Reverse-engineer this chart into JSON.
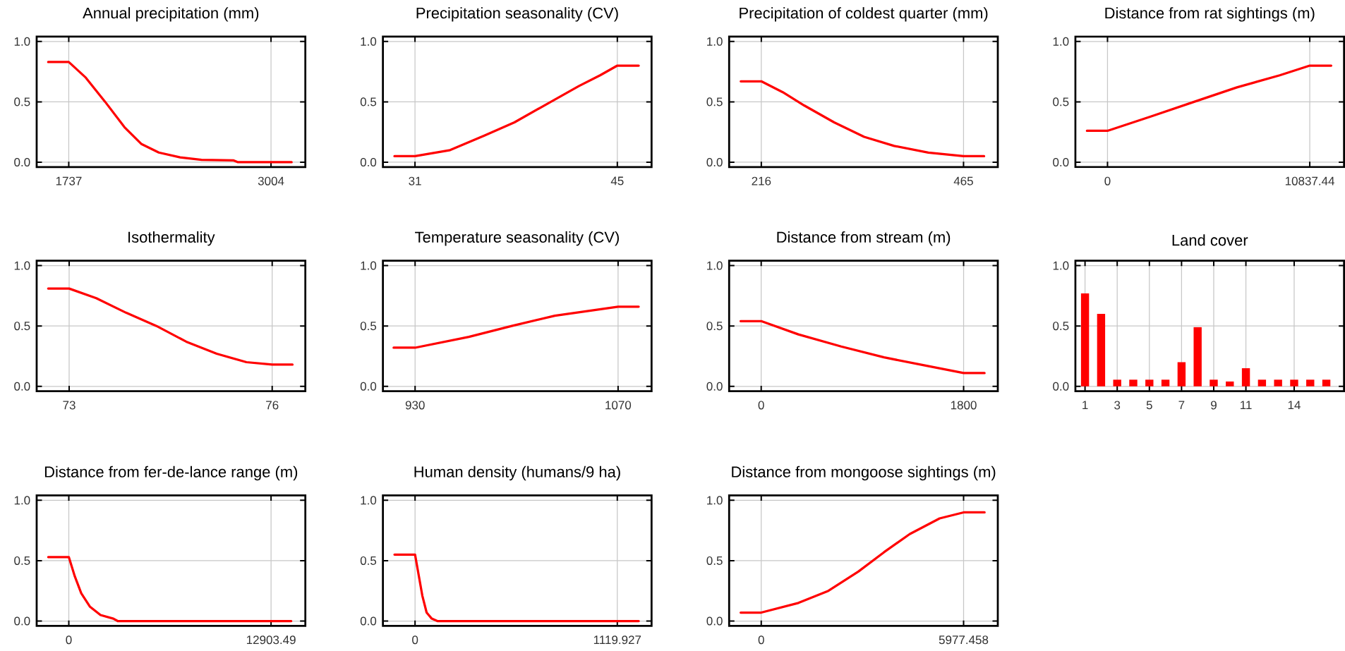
{
  "chart_data": [
    {
      "type": "line",
      "title": "Annual precipitation (mm)",
      "color": "#ff0000",
      "grid": true,
      "x": [
        1608,
        1737,
        1844,
        1965,
        2086,
        2193,
        2301,
        2435,
        2569,
        2770,
        2797,
        3133
      ],
      "values": [
        0.83,
        0.83,
        0.7,
        0.5,
        0.29,
        0.15,
        0.08,
        0.04,
        0.02,
        0.015,
        0.0,
        0.0
      ],
      "xlim": [
        1536,
        3219
      ],
      "xticks": [
        1737,
        3004
      ],
      "ylim": [
        -0.04,
        1.04
      ],
      "yticks": [
        {
          "value": 0,
          "label": "0.0"
        },
        {
          "value": 0.5,
          "label": "0.5"
        },
        {
          "value": 1,
          "label": "1.0"
        }
      ]
    },
    {
      "type": "line",
      "title": "Precipitation seasonality (CV)",
      "color": "#ff0000",
      "grid": true,
      "x": [
        29.58,
        31,
        33.43,
        35.8,
        37.88,
        40.25,
        42.33,
        43.81,
        45,
        46.48
      ],
      "values": [
        0.05,
        0.05,
        0.1,
        0.22,
        0.33,
        0.49,
        0.63,
        0.72,
        0.8,
        0.8
      ],
      "xlim": [
        28.78,
        47.37
      ],
      "xticks": [
        31,
        45
      ],
      "ylim": [
        -0.04,
        1.04
      ],
      "yticks": [
        {
          "value": 0,
          "label": "0.0"
        },
        {
          "value": 0.5,
          "label": "0.5"
        },
        {
          "value": 1,
          "label": "1.0"
        }
      ]
    },
    {
      "type": "line",
      "title": "Precipitation of coldest quarter (mm)",
      "color": "#ff0000",
      "grid": true,
      "x": [
        190.7,
        216,
        242.4,
        268.8,
        305.7,
        342.6,
        379.5,
        421.7,
        465,
        490.3
      ],
      "values": [
        0.67,
        0.67,
        0.58,
        0.47,
        0.33,
        0.21,
        0.135,
        0.08,
        0.05,
        0.05
      ],
      "xlim": [
        176.4,
        507.2
      ],
      "xticks": [
        216,
        465
      ],
      "ylim": [
        -0.04,
        1.04
      ],
      "yticks": [
        {
          "value": 0,
          "label": "0.0"
        },
        {
          "value": 0.5,
          "label": "0.5"
        },
        {
          "value": 1,
          "label": "1.0"
        }
      ]
    },
    {
      "type": "line",
      "title": "Distance from rat sightings (m)",
      "color": "#ff0000",
      "grid": true,
      "x": [
        -1102,
        0,
        2342,
        4638,
        6934,
        9230,
        10837.44,
        11985
      ],
      "values": [
        0.26,
        0.26,
        0.38,
        0.5,
        0.62,
        0.72,
        0.8,
        0.8
      ],
      "xlim": [
        -1722,
        12674
      ],
      "xticks": [
        0,
        10837.44
      ],
      "ylim": [
        -0.04,
        1.04
      ],
      "yticks": [
        {
          "value": 0,
          "label": "0.0"
        },
        {
          "value": 0.5,
          "label": "0.5"
        },
        {
          "value": 1,
          "label": "1.0"
        }
      ]
    },
    {
      "type": "line",
      "title": "Isothermality",
      "color": "#ff0000",
      "grid": true,
      "x": [
        72.69,
        73,
        73.4,
        73.84,
        74.29,
        74.73,
        75.18,
        75.62,
        76,
        76.3
      ],
      "values": [
        0.81,
        0.81,
        0.73,
        0.61,
        0.5,
        0.37,
        0.27,
        0.2,
        0.18,
        0.18
      ],
      "xlim": [
        72.52,
        76.49
      ],
      "xticks": [
        73,
        76
      ],
      "ylim": [
        -0.04,
        1.04
      ],
      "yticks": [
        {
          "value": 0,
          "label": "0.0"
        },
        {
          "value": 0.5,
          "label": "0.5"
        },
        {
          "value": 1,
          "label": "1.0"
        }
      ]
    },
    {
      "type": "line",
      "title": "Temperature seasonality (CV)",
      "color": "#ff0000",
      "grid": true,
      "x": [
        915.2,
        930,
        967.1,
        996.7,
        1026.4,
        1070,
        1084.2
      ],
      "values": [
        0.32,
        0.32,
        0.41,
        0.5,
        0.585,
        0.66,
        0.66
      ],
      "xlim": [
        907.8,
        1093.1
      ],
      "xticks": [
        930,
        1070
      ],
      "ylim": [
        -0.04,
        1.04
      ],
      "yticks": [
        {
          "value": 0,
          "label": "0.0"
        },
        {
          "value": 0.5,
          "label": "0.5"
        },
        {
          "value": 1,
          "label": "1.0"
        }
      ]
    },
    {
      "type": "line",
      "title": "Distance from stream (m)",
      "color": "#ff0000",
      "grid": true,
      "x": [
        -183,
        0,
        331,
        711,
        1092,
        1472,
        1800,
        1986
      ],
      "values": [
        0.54,
        0.54,
        0.43,
        0.33,
        0.24,
        0.17,
        0.11,
        0.11
      ],
      "xlim": [
        -285,
        2104
      ],
      "xticks": [
        0,
        1800
      ],
      "ylim": [
        -0.04,
        1.04
      ],
      "yticks": [
        {
          "value": 0,
          "label": "0.0"
        },
        {
          "value": 0.5,
          "label": "0.5"
        },
        {
          "value": 1,
          "label": "1.0"
        }
      ]
    },
    {
      "type": "bar",
      "title": "Land cover",
      "color": "#ff0000",
      "grid": true,
      "x": [
        1,
        2,
        3,
        4,
        5,
        6,
        7,
        8,
        9,
        10,
        11,
        12,
        13,
        14,
        15,
        16
      ],
      "values": [
        0.77,
        0.6,
        0.055,
        0.055,
        0.055,
        0.055,
        0.2,
        0.49,
        0.055,
        0.04,
        0.15,
        0.055,
        0.055,
        0.055,
        0.055,
        0.055
      ],
      "xlim": [
        0.4,
        17.1
      ],
      "xticks": [
        1,
        3,
        5,
        7,
        9,
        11,
        14
      ],
      "ylim": [
        -0.04,
        1.04
      ],
      "yticks": [
        {
          "value": 0,
          "label": "0.0"
        },
        {
          "value": 0.5,
          "label": "0.5"
        },
        {
          "value": 1,
          "label": "1.0"
        }
      ]
    },
    {
      "type": "line",
      "title": "Distance from fer-de-lance range (m)",
      "color": "#ff0000",
      "grid": true,
      "x": [
        -1312,
        0,
        383,
        793,
        1340,
        2023,
        2843,
        3117,
        14190
      ],
      "values": [
        0.53,
        0.53,
        0.37,
        0.23,
        0.12,
        0.05,
        0.02,
        0.0,
        0.0
      ],
      "xlim": [
        -2050,
        15091
      ],
      "xticks": [
        0,
        12903.49
      ],
      "ylim": [
        -0.04,
        1.04
      ],
      "yticks": [
        {
          "value": 0,
          "label": "0.0"
        },
        {
          "value": 0.5,
          "label": "0.5"
        },
        {
          "value": 1,
          "label": "1.0"
        }
      ]
    },
    {
      "type": "line",
      "title": "Human density (humans/9 ha)",
      "color": "#ff0000",
      "grid": true,
      "x": [
        -113.9,
        0,
        21.4,
        40.3,
        64.1,
        92.5,
        123.4,
        1238.6
      ],
      "values": [
        0.55,
        0.55,
        0.37,
        0.21,
        0.07,
        0.02,
        0.0,
        0.0
      ],
      "xlim": [
        -178,
        1309.7
      ],
      "xticks": [
        0,
        1119.927
      ],
      "ylim": [
        -0.04,
        1.04
      ],
      "yticks": [
        {
          "value": 0,
          "label": "0.0"
        },
        {
          "value": 0.5,
          "label": "0.5"
        },
        {
          "value": 1,
          "label": "1.0"
        }
      ]
    },
    {
      "type": "line",
      "title": "Distance from mongoose sightings (m)",
      "color": "#ff0000",
      "grid": true,
      "x": [
        -607,
        0,
        1099,
        1984,
        2869,
        3627,
        4385,
        5270,
        5977.458,
        6597
      ],
      "values": [
        0.07,
        0.07,
        0.15,
        0.25,
        0.41,
        0.57,
        0.72,
        0.85,
        0.9,
        0.9
      ],
      "xlim": [
        -948,
        6988
      ],
      "xticks": [
        0,
        5977.458
      ],
      "ylim": [
        -0.04,
        1.04
      ],
      "yticks": [
        {
          "value": 0,
          "label": "0.0"
        },
        {
          "value": 0.5,
          "label": "0.5"
        },
        {
          "value": 1,
          "label": "1.0"
        }
      ]
    }
  ]
}
